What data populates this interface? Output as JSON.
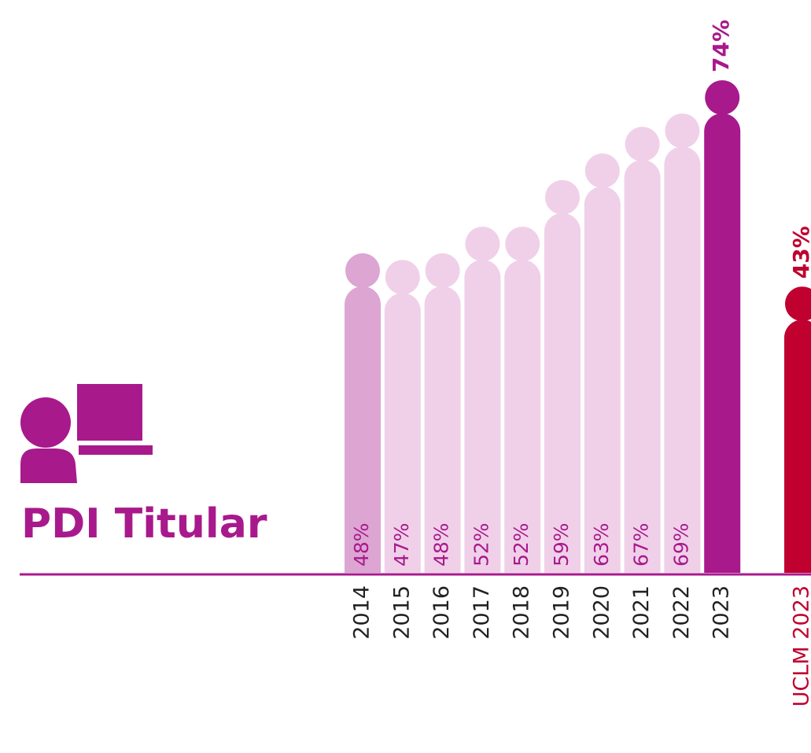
{
  "chart_data": {
    "type": "bar",
    "title": "PDI Titular",
    "categories": [
      "2014",
      "2015",
      "2016",
      "2017",
      "2018",
      "2019",
      "2020",
      "2021",
      "2022",
      "2023",
      "UCLM 2023"
    ],
    "values": [
      48,
      47,
      48,
      52,
      52,
      59,
      63,
      67,
      69,
      74,
      43
    ],
    "value_labels": [
      "48%",
      "47%",
      "48%",
      "52%",
      "52%",
      "59%",
      "63%",
      "67%",
      "69%",
      "74%",
      "43%"
    ],
    "colors": [
      "#dca5d2",
      "#f0d0e8",
      "#f0d0e8",
      "#f0d0e8",
      "#f0d0e8",
      "#f0d0e8",
      "#f0d0e8",
      "#f0d0e8",
      "#f0d0e8",
      "#a8198c",
      "#c0002f"
    ]
  }
}
